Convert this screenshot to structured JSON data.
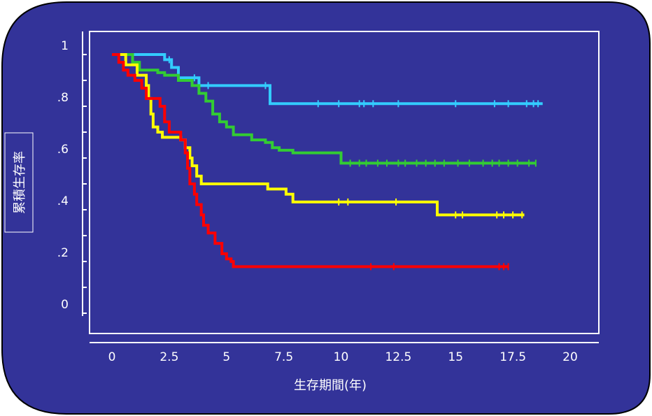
{
  "chart_data": {
    "type": "line",
    "xlabel": "生存期間(年)",
    "ylabel": "累積生存率",
    "xlim": [
      0,
      20
    ],
    "ylim": [
      0,
      1
    ],
    "xticks": [
      "0",
      "2.5",
      "5",
      "7.5",
      "10",
      "12.5",
      "15",
      "17.5",
      "20"
    ],
    "yticks": [
      "0",
      ".2",
      ".4",
      ".6",
      ".8",
      "1"
    ],
    "grid": false,
    "background": "#333399",
    "series": [
      {
        "color": "#33ccff",
        "steps": [
          [
            0,
            1
          ],
          [
            2.3,
            0.98
          ],
          [
            2.6,
            0.95
          ],
          [
            2.9,
            0.91
          ],
          [
            3.8,
            0.88
          ],
          [
            6.9,
            0.86
          ],
          [
            6.9,
            0.81
          ],
          [
            18.8,
            0.81
          ]
        ],
        "censors": [
          2.5,
          2.9,
          3.6,
          4.2,
          6.7,
          9.0,
          9.9,
          10.8,
          11.0,
          11.4,
          12.5,
          15.0,
          16.7,
          17.3,
          18.1,
          18.4,
          18.6
        ]
      },
      {
        "color": "#33cc33",
        "steps": [
          [
            0,
            1
          ],
          [
            0.9,
            0.97
          ],
          [
            1.2,
            0.94
          ],
          [
            2.0,
            0.93
          ],
          [
            2.3,
            0.92
          ],
          [
            2.9,
            0.9
          ],
          [
            3.5,
            0.88
          ],
          [
            3.8,
            0.85
          ],
          [
            4.1,
            0.82
          ],
          [
            4.4,
            0.77
          ],
          [
            4.7,
            0.74
          ],
          [
            5.0,
            0.72
          ],
          [
            5.3,
            0.69
          ],
          [
            6.1,
            0.67
          ],
          [
            6.4,
            0.67
          ],
          [
            6.7,
            0.66
          ],
          [
            7.0,
            0.64
          ],
          [
            7.3,
            0.63
          ],
          [
            7.9,
            0.62
          ],
          [
            10.0,
            0.62
          ],
          [
            10.0,
            0.58
          ],
          [
            18.5,
            0.58
          ]
        ],
        "censors": [
          10.4,
          10.8,
          11.1,
          11.6,
          12.0,
          12.5,
          12.8,
          13.3,
          13.7,
          14.1,
          14.5,
          15.1,
          15.6,
          16.2,
          16.6,
          16.9,
          17.3,
          17.7,
          18.2,
          18.5
        ]
      },
      {
        "color": "#ffff00",
        "steps": [
          [
            0,
            1
          ],
          [
            0.6,
            0.96
          ],
          [
            1.1,
            0.92
          ],
          [
            1.5,
            0.88
          ],
          [
            1.6,
            0.83
          ],
          [
            1.7,
            0.77
          ],
          [
            1.8,
            0.72
          ],
          [
            2.0,
            0.7
          ],
          [
            2.2,
            0.68
          ],
          [
            3.0,
            0.67
          ],
          [
            3.2,
            0.64
          ],
          [
            3.4,
            0.6
          ],
          [
            3.5,
            0.57
          ],
          [
            3.7,
            0.53
          ],
          [
            3.9,
            0.5
          ],
          [
            6.7,
            0.5
          ],
          [
            6.8,
            0.48
          ],
          [
            7.6,
            0.46
          ],
          [
            7.9,
            0.43
          ],
          [
            14.1,
            0.43
          ],
          [
            14.2,
            0.38
          ],
          [
            18.0,
            0.38
          ]
        ],
        "censors": [
          9.9,
          10.3,
          12.4,
          15.0,
          15.3,
          16.8,
          17.1,
          17.5,
          17.9
        ]
      },
      {
        "color": "#ff0000",
        "steps": [
          [
            0,
            1
          ],
          [
            0.3,
            0.97
          ],
          [
            0.5,
            0.94
          ],
          [
            0.7,
            0.92
          ],
          [
            1.0,
            0.9
          ],
          [
            1.3,
            0.87
          ],
          [
            1.5,
            0.83
          ],
          [
            2.1,
            0.8
          ],
          [
            2.3,
            0.74
          ],
          [
            2.5,
            0.7
          ],
          [
            3.0,
            0.67
          ],
          [
            3.2,
            0.62
          ],
          [
            3.3,
            0.56
          ],
          [
            3.4,
            0.5
          ],
          [
            3.6,
            0.46
          ],
          [
            3.7,
            0.42
          ],
          [
            3.9,
            0.38
          ],
          [
            4.0,
            0.34
          ],
          [
            4.2,
            0.31
          ],
          [
            4.5,
            0.27
          ],
          [
            4.8,
            0.23
          ],
          [
            5.0,
            0.21
          ],
          [
            5.2,
            0.2
          ],
          [
            5.3,
            0.18
          ],
          [
            17.3,
            0.18
          ]
        ],
        "censors": [
          11.3,
          12.3,
          16.9,
          17.1,
          17.3
        ]
      }
    ]
  }
}
